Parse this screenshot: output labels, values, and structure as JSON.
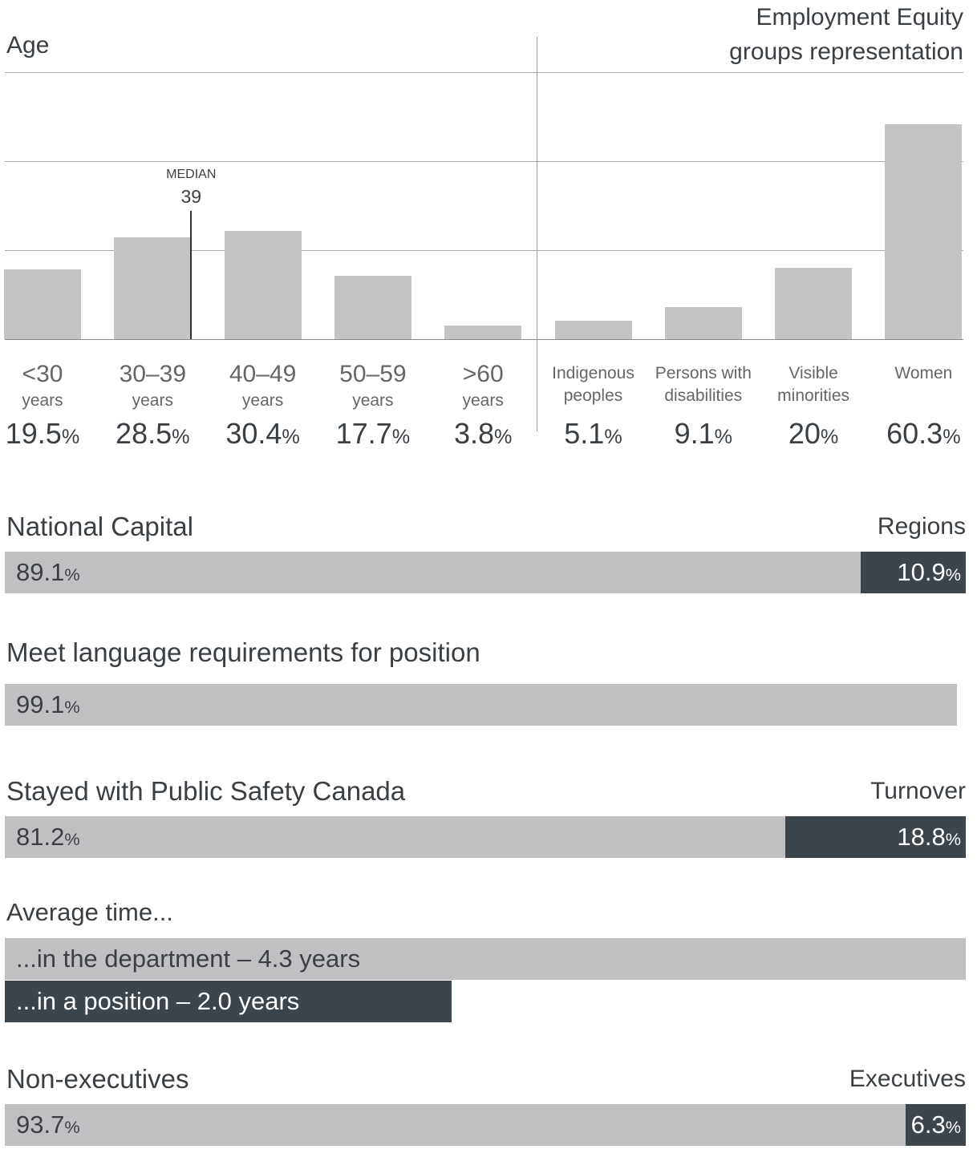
{
  "chart_data": [
    {
      "type": "bar",
      "title": "Age",
      "categories": [
        "<30",
        "30–39",
        "40–49",
        "50–59",
        ">60"
      ],
      "category_unit": "years",
      "values": [
        19.5,
        28.5,
        30.4,
        17.7,
        3.8
      ],
      "value_labels": [
        "19.5%",
        "28.5%",
        "30.4%",
        "17.7%",
        "3.8%"
      ],
      "color": "#c4c4c6",
      "ylim": [
        0,
        75
      ],
      "yticks": [
        0,
        25,
        50,
        75
      ],
      "grid": true,
      "annotation": {
        "label": "MEDIAN",
        "value": 39
      }
    },
    {
      "type": "bar",
      "title": "Employment Equity\ngroups representation",
      "categories": [
        "Indigenous\npeoples",
        "Persons with\ndisabilities",
        "Visible\nminorities",
        "Women"
      ],
      "values": [
        5.1,
        9.1,
        20,
        60.3
      ],
      "value_labels": [
        "5.1%",
        "9.1%",
        "20%",
        "60.3%"
      ],
      "color": "#c4c4c6",
      "ylim": [
        0,
        75
      ],
      "yticks": [
        0,
        25,
        50,
        75
      ],
      "grid": true
    },
    {
      "type": "stacked-hbar",
      "xlim": [
        0,
        100
      ],
      "series": [
        {
          "name": "National Capital",
          "color": "#c0c0c2",
          "values": [
            89.1
          ],
          "value_labels": [
            "89.1%"
          ]
        },
        {
          "name": "Regions",
          "color": "#3c444c",
          "values": [
            10.9
          ],
          "value_labels": [
            "10.9%"
          ]
        }
      ]
    },
    {
      "type": "stacked-hbar",
      "xlim": [
        0,
        100
      ],
      "series": [
        {
          "name": "Meet language requirements for position",
          "color": "#c0c0c2",
          "values": [
            99.1
          ],
          "value_labels": [
            "99.1%"
          ]
        }
      ]
    },
    {
      "type": "stacked-hbar",
      "xlim": [
        0,
        100
      ],
      "series": [
        {
          "name": "Stayed with Public Safety Canada",
          "color": "#c0c0c2",
          "values": [
            81.2
          ],
          "value_labels": [
            "81.2%"
          ]
        },
        {
          "name": "Turnover",
          "color": "#3c444c",
          "values": [
            18.8
          ],
          "value_labels": [
            "18.8%"
          ]
        }
      ]
    },
    {
      "type": "hbar",
      "title": "Average time...",
      "values": [
        4.3,
        2.0
      ],
      "value_labels": [
        "...in the department – 4.3 years",
        "...in a position – 2.0 years"
      ],
      "colors": [
        "#c0c0c2",
        "#3c444c"
      ]
    },
    {
      "type": "stacked-hbar",
      "xlim": [
        0,
        100
      ],
      "series": [
        {
          "name": "Non-executives",
          "color": "#c0c0c2",
          "values": [
            93.7
          ],
          "value_labels": [
            "93.7%"
          ]
        },
        {
          "name": "Executives",
          "color": "#3c444c",
          "values": [
            6.3
          ],
          "value_labels": [
            "6.3%"
          ]
        }
      ]
    }
  ]
}
